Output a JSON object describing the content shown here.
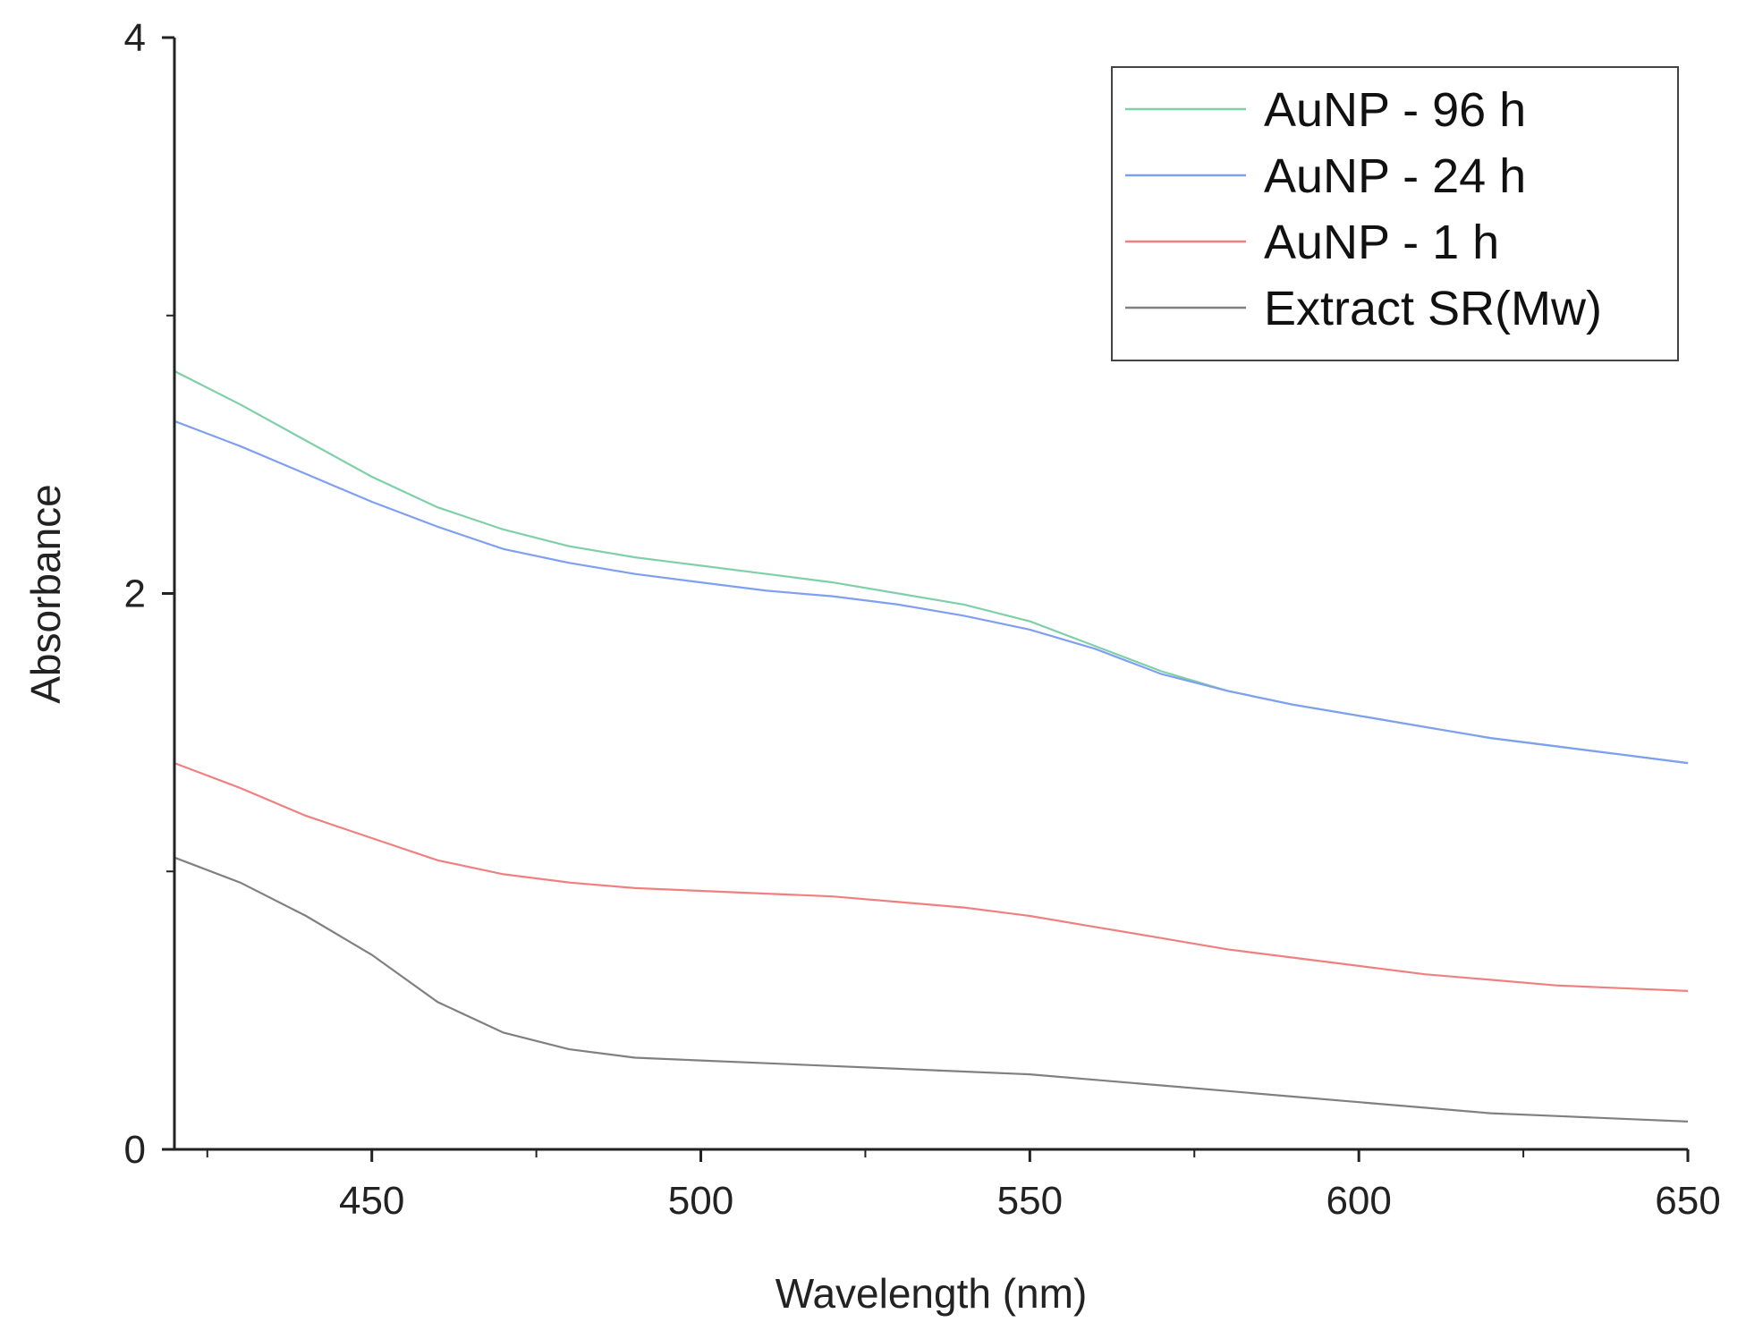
{
  "chart_data": {
    "type": "line",
    "title": "",
    "xlabel": "Wavelength (nm)",
    "ylabel": "Absorbance",
    "xlim": [
      420,
      650
    ],
    "ylim": [
      0,
      4
    ],
    "x_ticks": [
      450,
      500,
      550,
      600,
      650
    ],
    "x_tick_labels": [
      "450",
      "500",
      "550",
      "600",
      "650"
    ],
    "y_ticks": [
      0,
      2,
      4
    ],
    "y_tick_labels": [
      "0",
      "2",
      "4"
    ],
    "y_minor_ticks": [
      1,
      3
    ],
    "grid": false,
    "legend_position": "top-right",
    "series": [
      {
        "name": "AuNP - 96 h",
        "color": "#7fcfa8",
        "x": [
          420,
          430,
          440,
          450,
          460,
          470,
          480,
          490,
          500,
          510,
          520,
          530,
          540,
          550,
          560,
          570,
          580,
          590,
          600,
          610,
          620,
          630,
          640,
          650
        ],
        "y": [
          2.8,
          2.68,
          2.55,
          2.42,
          2.31,
          2.23,
          2.17,
          2.13,
          2.1,
          2.07,
          2.04,
          2.0,
          1.96,
          1.9,
          1.81,
          1.72,
          1.65,
          1.6,
          1.56,
          1.52,
          1.48,
          1.45,
          1.42,
          1.39
        ]
      },
      {
        "name": "AuNP - 24 h",
        "color": "#7f9ff0",
        "x": [
          420,
          430,
          440,
          450,
          460,
          470,
          480,
          490,
          500,
          510,
          520,
          530,
          540,
          550,
          560,
          570,
          580,
          590,
          600,
          610,
          620,
          630,
          640,
          650
        ],
        "y": [
          2.62,
          2.53,
          2.43,
          2.33,
          2.24,
          2.16,
          2.11,
          2.07,
          2.04,
          2.01,
          1.99,
          1.96,
          1.92,
          1.87,
          1.8,
          1.71,
          1.65,
          1.6,
          1.56,
          1.52,
          1.48,
          1.45,
          1.42,
          1.39
        ]
      },
      {
        "name": "AuNP - 1 h",
        "color": "#f08080",
        "x": [
          420,
          430,
          440,
          450,
          460,
          470,
          480,
          490,
          500,
          510,
          520,
          530,
          540,
          550,
          560,
          570,
          580,
          590,
          600,
          610,
          620,
          630,
          640,
          650
        ],
        "y": [
          1.39,
          1.3,
          1.2,
          1.12,
          1.04,
          0.99,
          0.96,
          0.94,
          0.93,
          0.92,
          0.91,
          0.89,
          0.87,
          0.84,
          0.8,
          0.76,
          0.72,
          0.69,
          0.66,
          0.63,
          0.61,
          0.59,
          0.58,
          0.57
        ]
      },
      {
        "name": "Extract SR(Mw)",
        "color": "#808080",
        "x": [
          420,
          430,
          440,
          450,
          460,
          470,
          480,
          490,
          500,
          510,
          520,
          530,
          540,
          550,
          560,
          570,
          580,
          590,
          600,
          610,
          620,
          630,
          640,
          650
        ],
        "y": [
          1.05,
          0.96,
          0.84,
          0.7,
          0.53,
          0.42,
          0.36,
          0.33,
          0.32,
          0.31,
          0.3,
          0.29,
          0.28,
          0.27,
          0.25,
          0.23,
          0.21,
          0.19,
          0.17,
          0.15,
          0.13,
          0.12,
          0.11,
          0.1
        ]
      }
    ]
  }
}
